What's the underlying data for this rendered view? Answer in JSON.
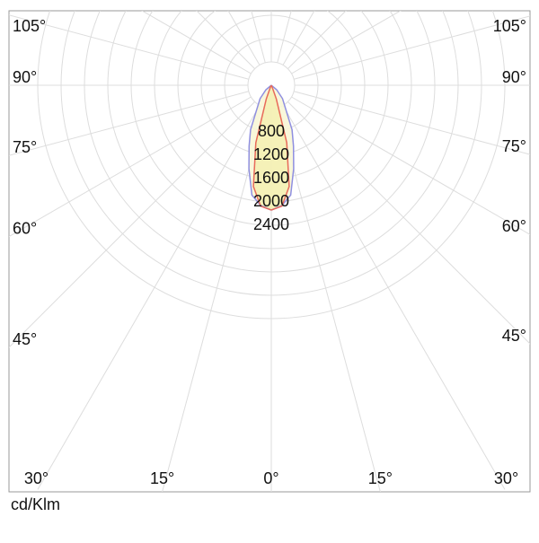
{
  "chart_data": {
    "type": "polar",
    "unit_label": "cd/Klm",
    "angles": [
      0,
      5,
      10,
      15,
      20,
      25,
      30,
      40,
      50,
      60,
      90
    ],
    "series": [
      {
        "color": "#8f8fe0",
        "fill": "#f8f6d6",
        "values": [
          2140,
          2070,
          1910,
          1480,
          1110,
          840,
          520,
          300,
          120,
          5,
          0
        ]
      },
      {
        "color": "#e86a5a",
        "fill": "#f4efb4",
        "values": [
          2140,
          2080,
          1760,
          1020,
          250,
          40,
          0,
          0,
          0,
          0,
          0
        ]
      }
    ],
    "rlim": [
      0,
      4000
    ],
    "rticks": [
      800,
      1200,
      1600,
      2000,
      2400
    ],
    "angle_ticks": [
      {
        "value": 0,
        "label": "0°"
      },
      {
        "value": 15,
        "label": "15°"
      },
      {
        "value": 30,
        "label": "30°"
      },
      {
        "value": 45,
        "label": "45°"
      },
      {
        "value": 60,
        "label": "60°"
      },
      {
        "value": 75,
        "label": "75°"
      },
      {
        "value": 90,
        "label": "90°"
      },
      {
        "value": 105,
        "label": "105°"
      }
    ],
    "grid": true
  }
}
